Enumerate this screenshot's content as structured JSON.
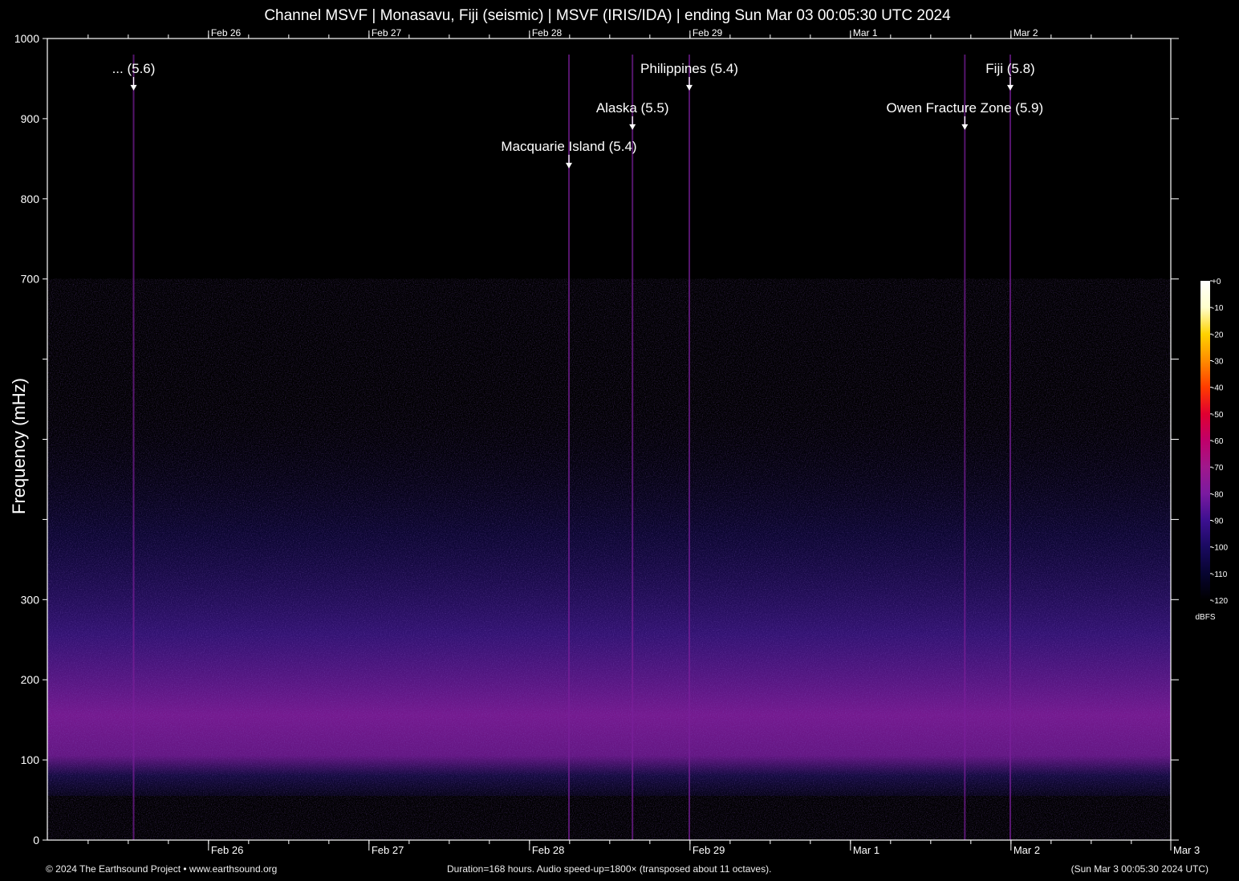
{
  "title": "Channel MSVF | Monasavu, Fiji (seismic) | MSVF (IRIS/IDA) | ending Sun Mar 03 00:05:30 UTC 2024",
  "footer": {
    "copyright": "© 2024 The Earthsound Project • www.earthsound.org",
    "duration": "Duration=168 hours. Audio speed-up=1800× (transposed about 11 octaves).",
    "end_time": "(Sun Mar  3 00:05:30 2024 UTC)"
  },
  "chart_data": {
    "type": "heatmap",
    "title": "Channel MSVF | Monasavu, Fiji (seismic) | MSVF (IRIS/IDA) | ending Sun Mar 03 00:05:30 UTC 2024",
    "ylabel": "Frequency (mHz)",
    "ylim": [
      0,
      1000
    ],
    "xlim_hours": [
      0,
      168
    ],
    "y_ticks": [
      {
        "value": 0,
        "label": "0"
      },
      {
        "value": 100,
        "label": "100"
      },
      {
        "value": 200,
        "label": "200"
      },
      {
        "value": 300,
        "label": "300"
      },
      {
        "value": 400,
        "label": ""
      },
      {
        "value": 500,
        "label": ""
      },
      {
        "value": 600,
        "label": ""
      },
      {
        "value": 700,
        "label": "700"
      },
      {
        "value": 800,
        "label": "800"
      },
      {
        "value": 900,
        "label": "900"
      },
      {
        "value": 1000,
        "label": "1000"
      }
    ],
    "x_ticks": [
      {
        "hour": 24.1,
        "label": "Feb 26"
      },
      {
        "hour": 48.1,
        "label": "Feb 27"
      },
      {
        "hour": 72.1,
        "label": "Feb 28"
      },
      {
        "hour": 96.1,
        "label": "Feb 29"
      },
      {
        "hour": 120.1,
        "label": "Mar  1"
      },
      {
        "hour": 144.1,
        "label": "Mar  2"
      },
      {
        "hour": 168.0,
        "label": "Mar  3"
      }
    ],
    "colorbar": {
      "unit": "dBFS",
      "ticks": [
        "+0",
        "-10",
        "-20",
        "-30",
        "-40",
        "-50",
        "-60",
        "-70",
        "-80",
        "-90",
        "-100",
        "-110",
        "-120"
      ],
      "stops": [
        "#ffffff",
        "#ffffcc",
        "#ffd200",
        "#ff8c00",
        "#ff3c00",
        "#e00030",
        "#c0006a",
        "#a0188c",
        "#7a1aa0",
        "#3c1090",
        "#1a0a60",
        "#070430",
        "#000000"
      ]
    },
    "annotations": [
      {
        "label": "... (5.6)",
        "hour": 12.9,
        "frequency": 935
      },
      {
        "label": "Philippines (5.4)",
        "hour": 96.0,
        "frequency": 935
      },
      {
        "label": "Fiji (5.8)",
        "hour": 144.0,
        "frequency": 935
      },
      {
        "label": "Alaska (5.5)",
        "hour": 87.5,
        "frequency": 886
      },
      {
        "label": "Owen Fracture Zone (5.9)",
        "hour": 137.2,
        "frequency": 886
      },
      {
        "label": "Macquarie Island (5.4)",
        "hour": 78.0,
        "frequency": 838
      }
    ]
  }
}
